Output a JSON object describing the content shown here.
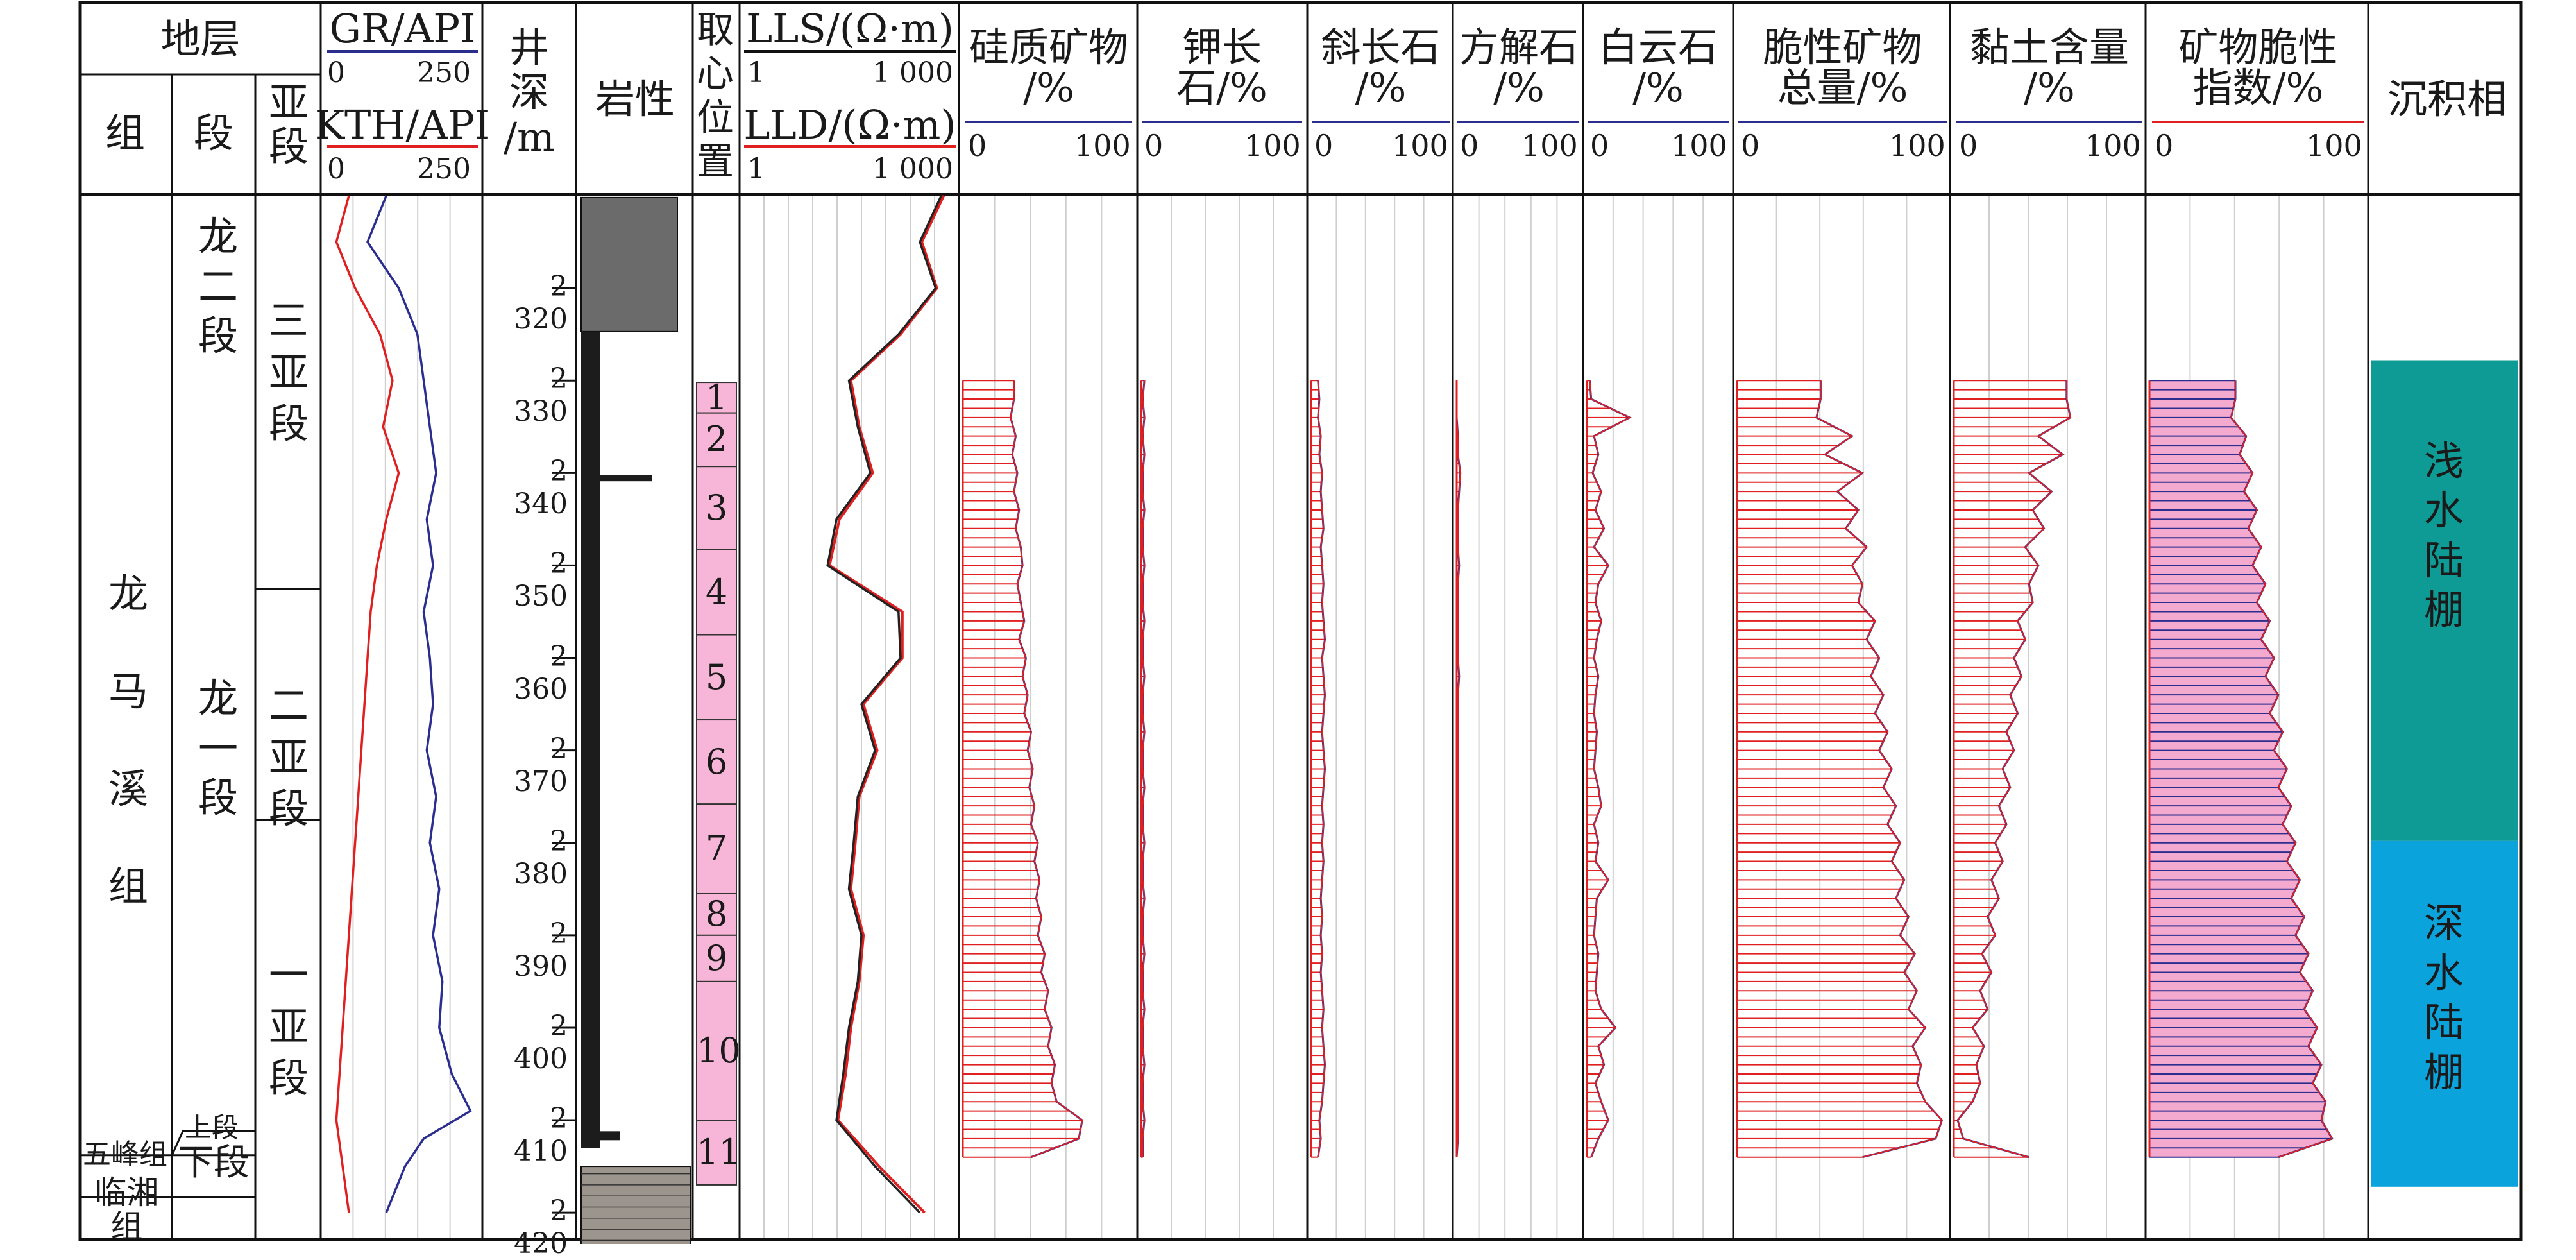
{
  "header": {
    "stratum": "地层",
    "group": "组",
    "segment": "段",
    "subsegment": "亚段",
    "gr_label": "GR/API",
    "gr_min": "0",
    "gr_max": "250",
    "kth_label": "KTH/API",
    "kth_min": "0",
    "kth_max": "250",
    "depth_label": "井深/m",
    "lithology": "岩性",
    "core": "取心位置",
    "lls_label": "LLS/(Ω·m)",
    "lls_min": "1",
    "lls_max": "1 000",
    "lld_label": "LLD/(Ω·m)",
    "lld_min": "1",
    "lld_max": "1 000",
    "siliceous": "硅质矿物/%",
    "kfeldspar": "钾长石/%",
    "plagioclase": "斜长石/%",
    "calcite": "方解石/%",
    "dolomite": "白云石/%",
    "brittle_total": "脆性矿物总量/%",
    "clay": "黏土含量/%",
    "brittleness": "矿物脆性指数/%",
    "facies": "沉积相",
    "pct_min": "0",
    "pct_max": "100"
  },
  "strata": {
    "group_longmaxi": "龙马溪组",
    "seg_long2": "龙二段",
    "seg_long1": "龙一段",
    "sub_3": "三亚段",
    "sub_2": "二亚段",
    "sub_1": "一亚段",
    "wufeng": "五峰组",
    "upper": "上段",
    "lower": "下段",
    "linxiang": "临湘组"
  },
  "facies": {
    "shallow": "浅水陆棚",
    "deep": "深水陆棚",
    "shallow_color": "#0e9b96",
    "deep_color": "#0aa3dc"
  },
  "colors": {
    "blue_curve": "#2b2e8f",
    "red_curve": "#e02020",
    "pink_fill": "#f4a9cf",
    "core_fill": "#f7b6d8"
  },
  "chart_data": {
    "type": "line",
    "title": "",
    "ylabel": "井深/m",
    "ylim": [
      2420,
      2310
    ],
    "depth_ticks": [
      "2 320",
      "2 330",
      "2 340",
      "2 350",
      "2 360",
      "2 370",
      "2 380",
      "2 390",
      "2 400",
      "2 410",
      "2 420"
    ],
    "core_positions": [
      {
        "label": "1",
        "top": 2330.2,
        "bottom": 2333.5
      },
      {
        "label": "2",
        "top": 2333.5,
        "bottom": 2339.3
      },
      {
        "label": "3",
        "top": 2339.3,
        "bottom": 2348.3
      },
      {
        "label": "4",
        "top": 2348.3,
        "bottom": 2357.5
      },
      {
        "label": "5",
        "top": 2357.5,
        "bottom": 2366.7
      },
      {
        "label": "6",
        "top": 2366.7,
        "bottom": 2375.8
      },
      {
        "label": "7",
        "top": 2375.8,
        "bottom": 2385.5
      },
      {
        "label": "8",
        "top": 2385.5,
        "bottom": 2390.0
      },
      {
        "label": "9",
        "top": 2390.0,
        "bottom": 2395.0
      },
      {
        "label": "10",
        "top": 2395.0,
        "bottom": 2410.0
      },
      {
        "label": "11",
        "top": 2410.0,
        "bottom": 2417.0
      }
    ],
    "tracks": {
      "gr": {
        "name": "GR/API",
        "range": [
          0,
          250
        ],
        "depth": [
          2310,
          2315,
          2320,
          2325,
          2330,
          2335,
          2340,
          2345,
          2350,
          2355,
          2360,
          2365,
          2370,
          2375,
          2380,
          2385,
          2390,
          2395,
          2400,
          2405,
          2409,
          2412,
          2415,
          2420
        ],
        "values": [
          100,
          70,
          120,
          150,
          160,
          170,
          180,
          165,
          175,
          160,
          170,
          175,
          165,
          180,
          170,
          185,
          175,
          190,
          185,
          205,
          235,
          160,
          130,
          100
        ]
      },
      "kth": {
        "name": "KTH/API",
        "range": [
          0,
          250
        ],
        "depth": [
          2310,
          2315,
          2320,
          2325,
          2330,
          2335,
          2340,
          2345,
          2350,
          2355,
          2360,
          2365,
          2370,
          2375,
          2380,
          2385,
          2390,
          2395,
          2400,
          2405,
          2410,
          2415,
          2420
        ],
        "values": [
          40,
          20,
          50,
          90,
          110,
          95,
          120,
          100,
          85,
          75,
          70,
          65,
          60,
          55,
          50,
          45,
          40,
          35,
          30,
          25,
          20,
          30,
          40
        ]
      },
      "lls": {
        "name": "LLS/(Ω·m)",
        "range": [
          1,
          1000
        ],
        "depth": [
          2310,
          2315,
          2320,
          2325,
          2330,
          2335,
          2340,
          2345,
          2350,
          2355,
          2360,
          2365,
          2370,
          2375,
          2380,
          2385,
          2390,
          2395,
          2400,
          2405,
          2410,
          2415,
          2420
        ],
        "values": [
          600,
          300,
          500,
          150,
          30,
          40,
          60,
          20,
          15,
          150,
          160,
          45,
          70,
          40,
          35,
          30,
          45,
          40,
          30,
          25,
          20,
          70,
          300
        ]
      },
      "lld": {
        "name": "LLD/(Ω·m)",
        "range": [
          1,
          1000
        ],
        "depth": [
          2310,
          2315,
          2320,
          2325,
          2330,
          2335,
          2340,
          2345,
          2350,
          2355,
          2360,
          2365,
          2370,
          2375,
          2380,
          2385,
          2390,
          2395,
          2400,
          2405,
          2410,
          2415,
          2420
        ],
        "values": [
          650,
          320,
          520,
          160,
          32,
          42,
          65,
          22,
          16,
          170,
          170,
          48,
          75,
          42,
          37,
          32,
          48,
          42,
          32,
          27,
          21,
          80,
          350
        ]
      }
    },
    "mineral_depth": [
      2330,
      2332,
      2334,
      2336,
      2338,
      2340,
      2342,
      2344,
      2346,
      2348,
      2350,
      2352,
      2354,
      2356,
      2358,
      2360,
      2362,
      2364,
      2366,
      2368,
      2370,
      2372,
      2374,
      2376,
      2378,
      2380,
      2382,
      2384,
      2386,
      2388,
      2390,
      2392,
      2394,
      2396,
      2398,
      2400,
      2402,
      2404,
      2406,
      2408,
      2410,
      2412,
      2414
    ],
    "minerals": {
      "siliceous": [
        30,
        30,
        28,
        31,
        29,
        32,
        30,
        33,
        31,
        34,
        35,
        32,
        34,
        36,
        33,
        37,
        35,
        38,
        36,
        40,
        38,
        41,
        39,
        42,
        40,
        44,
        42,
        45,
        43,
        46,
        44,
        48,
        46,
        50,
        48,
        52,
        50,
        54,
        52,
        55,
        70,
        68,
        40
      ],
      "kfeldspar": [
        2,
        1,
        2,
        1,
        2,
        1,
        1,
        2,
        1,
        1,
        2,
        1,
        1,
        2,
        1,
        1,
        2,
        1,
        1,
        2,
        1,
        1,
        2,
        1,
        1,
        2,
        1,
        1,
        2,
        1,
        1,
        2,
        1,
        1,
        2,
        1,
        1,
        2,
        1,
        1,
        2,
        1,
        1
      ],
      "plagioclase": [
        5,
        6,
        5,
        7,
        6,
        8,
        7,
        8,
        9,
        7,
        8,
        9,
        8,
        9,
        10,
        8,
        9,
        10,
        9,
        8,
        9,
        10,
        9,
        8,
        9,
        8,
        9,
        8,
        7,
        8,
        7,
        8,
        7,
        8,
        9,
        8,
        9,
        10,
        9,
        8,
        6,
        7,
        5
      ],
      "calcite": [
        0,
        0,
        0,
        1,
        1,
        3,
        2,
        1,
        1,
        1,
        2,
        1,
        1,
        1,
        1,
        1,
        2,
        1,
        1,
        1,
        1,
        1,
        1,
        1,
        1,
        1,
        1,
        1,
        1,
        1,
        1,
        1,
        1,
        1,
        1,
        1,
        1,
        1,
        1,
        1,
        1,
        1,
        0
      ],
      "dolomite": [
        2,
        3,
        30,
        5,
        8,
        4,
        10,
        6,
        12,
        5,
        15,
        8,
        6,
        10,
        7,
        5,
        8,
        6,
        5,
        7,
        6,
        5,
        8,
        10,
        5,
        8,
        6,
        15,
        7,
        6,
        5,
        8,
        7,
        6,
        10,
        20,
        8,
        12,
        6,
        10,
        15,
        8,
        3
      ],
      "brittle_total": [
        40,
        40,
        38,
        55,
        42,
        60,
        48,
        58,
        52,
        62,
        55,
        60,
        58,
        66,
        62,
        68,
        64,
        70,
        66,
        72,
        68,
        74,
        70,
        76,
        72,
        78,
        74,
        80,
        76,
        82,
        78,
        85,
        80,
        86,
        82,
        90,
        84,
        88,
        86,
        90,
        98,
        95,
        60
      ],
      "clay": [
        60,
        60,
        62,
        45,
        58,
        40,
        52,
        42,
        48,
        38,
        45,
        40,
        42,
        34,
        38,
        32,
        36,
        30,
        34,
        28,
        32,
        26,
        30,
        24,
        28,
        22,
        26,
        20,
        24,
        18,
        22,
        15,
        20,
        14,
        18,
        10,
        16,
        12,
        14,
        10,
        2,
        5,
        40
      ],
      "brittleness": [
        40,
        40,
        38,
        45,
        42,
        48,
        44,
        50,
        46,
        52,
        48,
        54,
        50,
        56,
        52,
        58,
        54,
        60,
        56,
        62,
        58,
        64,
        60,
        66,
        62,
        68,
        64,
        70,
        66,
        72,
        68,
        74,
        70,
        76,
        72,
        78,
        74,
        80,
        76,
        82,
        80,
        85,
        60
      ]
    }
  }
}
